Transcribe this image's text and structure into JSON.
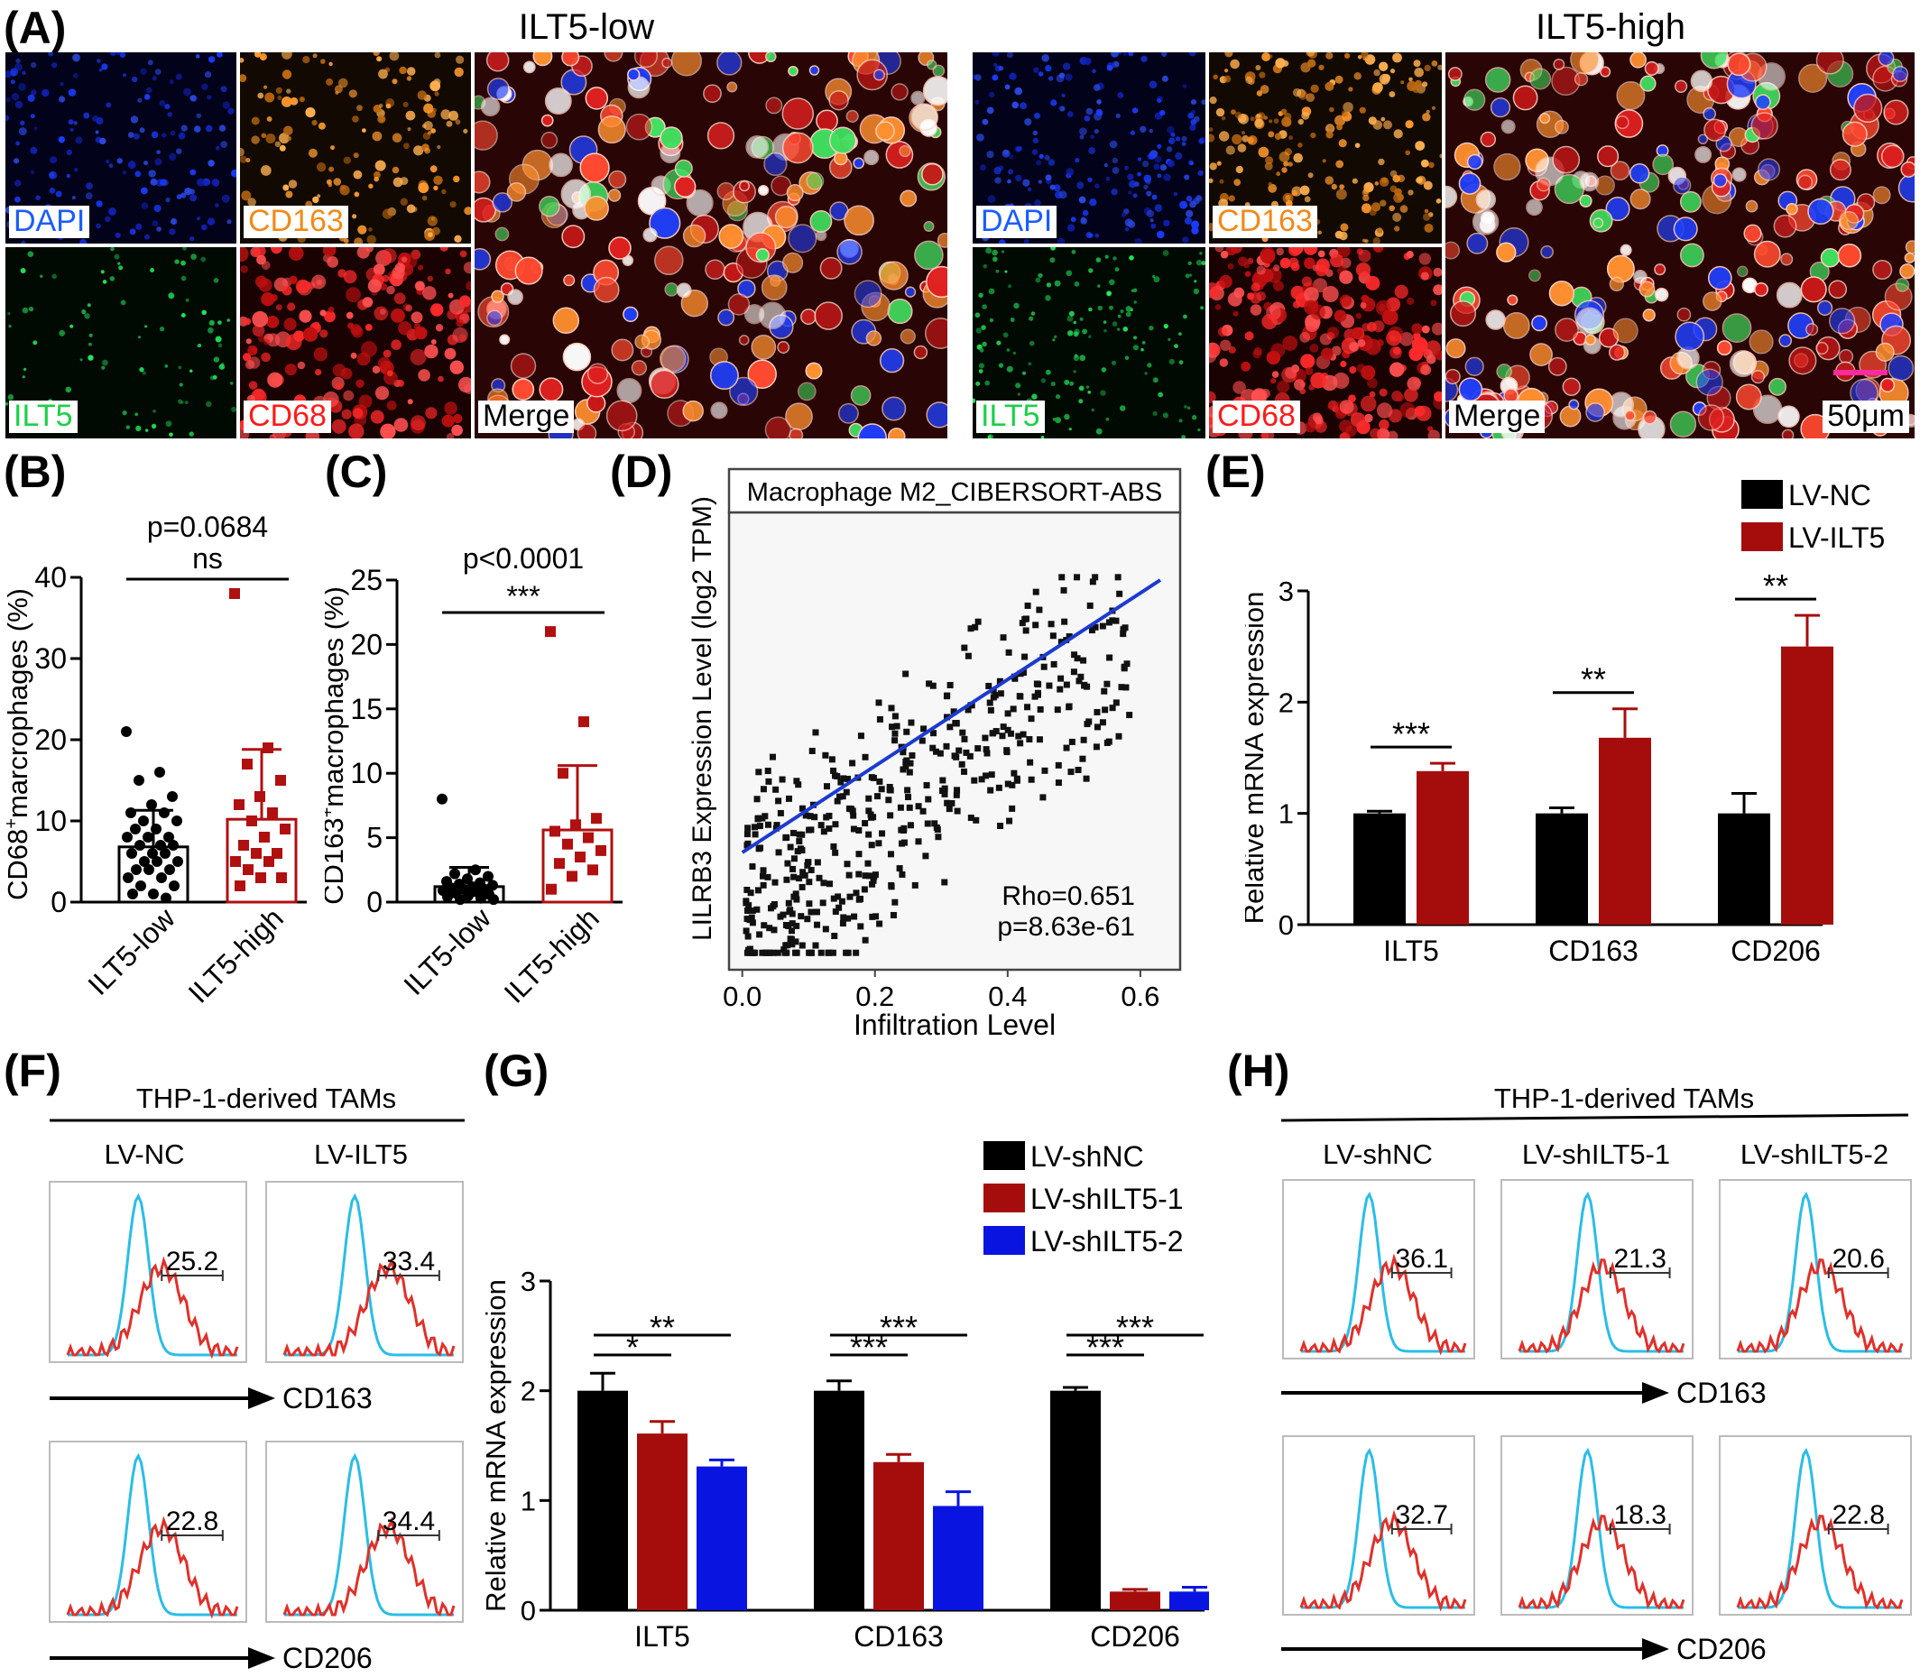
{
  "panel_labels": {
    "A": "(A)",
    "B": "(B)",
    "C": "(C)",
    "D": "(D)",
    "E": "(E)",
    "F": "(F)",
    "G": "(G)",
    "H": "(H)"
  },
  "panelA": {
    "low_title": "ILT5-low",
    "high_title": "ILT5-high",
    "labels": {
      "dapi": "DAPI",
      "cd163": "CD163",
      "ilt5": "ILT5",
      "cd68": "CD68",
      "merge": "Merge"
    },
    "scale_bar": "50μm",
    "colors": {
      "dapi": "#1a3cff",
      "cd163": "#ff9a2e",
      "ilt5": "#24e85a",
      "cd68": "#ff2a2a"
    }
  },
  "chart_data": [
    {
      "id": "B",
      "type": "bar",
      "categories": [
        "ILT5-low",
        "ILT5-high"
      ],
      "values": [
        6.8,
        10.2
      ],
      "errors": [
        4.5,
        8.6
      ],
      "points": [
        [
          21,
          16,
          15,
          13,
          12,
          11,
          11,
          10,
          10,
          9,
          9,
          8,
          8,
          8,
          7,
          7,
          7,
          6,
          6,
          6,
          5,
          5,
          5,
          4,
          4,
          4,
          3,
          3,
          2,
          2,
          1,
          1,
          0.5
        ],
        [
          38,
          19,
          17,
          15,
          13,
          12,
          11,
          10,
          9,
          8,
          7,
          6,
          6,
          5,
          5,
          4,
          3,
          3,
          2
        ]
      ],
      "ylabel_main": "CD68",
      "ylabel_sup": "+",
      "ylabel_rest": "marcrophages (%)",
      "ylim": [
        0,
        40
      ],
      "yticks": [
        "0",
        "10",
        "20",
        "30",
        "40"
      ],
      "p_text": "p=0.0684",
      "sig": "ns",
      "colors": [
        "#000000",
        "#b01010"
      ]
    },
    {
      "id": "C",
      "type": "bar",
      "categories": [
        "ILT5-low",
        "ILT5-high"
      ],
      "values": [
        1.2,
        5.6
      ],
      "errors": [
        1.5,
        5.0
      ],
      "points": [
        [
          8,
          2.5,
          2.2,
          2,
          1.8,
          1.6,
          1.5,
          1.4,
          1.3,
          1.2,
          1.1,
          1,
          1,
          0.9,
          0.8,
          0.7,
          0.6,
          0.5,
          0.4,
          0.3,
          0.2,
          0.2
        ],
        [
          21,
          14,
          10,
          6.5,
          6,
          5.5,
          5,
          4.5,
          4,
          3.5,
          3,
          2.5,
          2,
          1
        ]
      ],
      "ylabel_main": "CD163",
      "ylabel_sup": "+",
      "ylabel_rest": "macrophages (%)",
      "ylim": [
        0,
        25
      ],
      "yticks": [
        "0",
        "5",
        "10",
        "15",
        "20",
        "25"
      ],
      "p_text": "p<0.0001",
      "sig": "***",
      "colors": [
        "#000000",
        "#b01010"
      ]
    },
    {
      "id": "D",
      "type": "scatter",
      "title": "Macrophage M2_CIBERSORT-ABS",
      "xlabel": "Infiltration Level",
      "ylabel": "LILRB3 Expression Level (log2 TPM)",
      "xlim": [
        -0.02,
        0.66
      ],
      "xticks": [
        "0.0",
        "0.2",
        "0.4",
        "0.6"
      ],
      "fit": {
        "slope": 1.0,
        "intercept": 0
      },
      "annot1": "Rho=0.651",
      "annot2": "p=8.63e-61",
      "line_color": "#1b3bd1"
    },
    {
      "id": "E",
      "type": "bar",
      "categories": [
        "ILT5",
        "CD163",
        "CD206"
      ],
      "series": [
        {
          "name": "LV-NC",
          "values": [
            1.0,
            1.0,
            1.0
          ],
          "errors": [
            0.02,
            0.05,
            0.18
          ]
        },
        {
          "name": "LV-ILT5",
          "values": [
            1.38,
            1.68,
            2.5
          ],
          "errors": [
            0.07,
            0.26,
            0.28
          ]
        }
      ],
      "ylabel": "Relative mRNA  expression",
      "ylim": [
        0,
        3
      ],
      "yticks": [
        "0",
        "1",
        "2",
        "3"
      ],
      "sig": [
        "***",
        "**",
        "**"
      ],
      "colors": [
        "#000000",
        "#a50d0d"
      ]
    },
    {
      "id": "G",
      "type": "bar",
      "categories": [
        "ILT5",
        "CD163",
        "CD206"
      ],
      "series": [
        {
          "name": "LV-shNC",
          "values": [
            2.0,
            2.0,
            2.0
          ],
          "errors": [
            0.16,
            0.09,
            0.03
          ]
        },
        {
          "name": "LV-shILT5-1",
          "values": [
            1.61,
            1.35,
            0.17
          ],
          "errors": [
            0.11,
            0.07,
            0.02
          ]
        },
        {
          "name": "LV-shILT5-2",
          "values": [
            1.31,
            0.95,
            0.17
          ],
          "errors": [
            0.06,
            0.13,
            0.04
          ]
        }
      ],
      "ylabel": "Relative mRNA  expression",
      "ylim": [
        0,
        3
      ],
      "yticks": [
        "0",
        "1",
        "2",
        "3"
      ],
      "sig_short": [
        "*",
        "***",
        "***"
      ],
      "sig_long": [
        "**",
        "***",
        "***"
      ],
      "colors": [
        "#000000",
        "#a50d0d",
        "#0a14e0"
      ]
    },
    {
      "id": "F",
      "type": "histogram",
      "header": "THP-1-derived TAMs",
      "columns": [
        "LV-NC",
        "LV-ILT5"
      ],
      "markers": [
        "CD163",
        "CD206"
      ],
      "values": [
        [
          "25.2",
          "33.4"
        ],
        [
          "22.8",
          "34.4"
        ]
      ],
      "colors": {
        "control": "#2bbde6",
        "stain": "#e0302a"
      }
    },
    {
      "id": "H",
      "type": "histogram",
      "header": "THP-1-derived TAMs",
      "columns": [
        "LV-shNC",
        "LV-shILT5-1",
        "LV-shILT5-2"
      ],
      "markers": [
        "CD163",
        "CD206"
      ],
      "values": [
        [
          "36.1",
          "21.3",
          "20.6"
        ],
        [
          "32.7",
          "18.3",
          "22.8"
        ]
      ],
      "colors": {
        "control": "#2bbde6",
        "stain": "#e0302a"
      }
    }
  ]
}
